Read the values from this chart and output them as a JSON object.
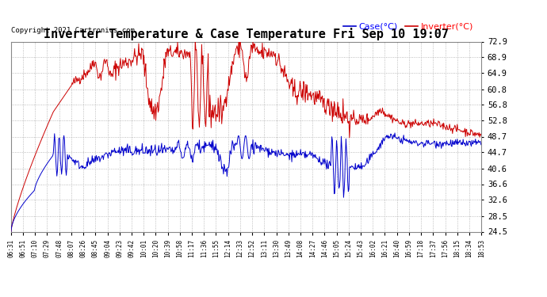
{
  "title": "Inverter Temperature & Case Temperature Fri Sep 10 19:07",
  "copyright": "Copyright 2021 Cartronics.com",
  "legend_case": "Case(°C)",
  "legend_inverter": "Inverter(°C)",
  "yticks": [
    72.9,
    68.9,
    64.9,
    60.8,
    56.8,
    52.8,
    48.7,
    44.7,
    40.6,
    36.6,
    32.6,
    28.5,
    24.5
  ],
  "ymin": 24.5,
  "ymax": 72.9,
  "xtick_labels": [
    "06:31",
    "06:51",
    "07:10",
    "07:29",
    "07:48",
    "08:07",
    "08:26",
    "08:45",
    "09:04",
    "09:23",
    "09:42",
    "10:01",
    "10:20",
    "10:39",
    "10:58",
    "11:17",
    "11:36",
    "11:55",
    "12:14",
    "12:33",
    "12:52",
    "13:11",
    "13:30",
    "13:49",
    "14:08",
    "14:27",
    "14:46",
    "15:05",
    "15:24",
    "15:43",
    "16:02",
    "16:21",
    "16:40",
    "16:59",
    "17:18",
    "17:37",
    "17:56",
    "18:15",
    "18:34",
    "18:53"
  ],
  "bg_color": "#ffffff",
  "plot_bg_color": "#ffffff",
  "grid_color": "#aaaaaa",
  "case_color": "#0000cc",
  "inverter_color": "#cc0000",
  "title_fontsize": 11,
  "copyright_fontsize": 6.5,
  "legend_fontsize": 8
}
